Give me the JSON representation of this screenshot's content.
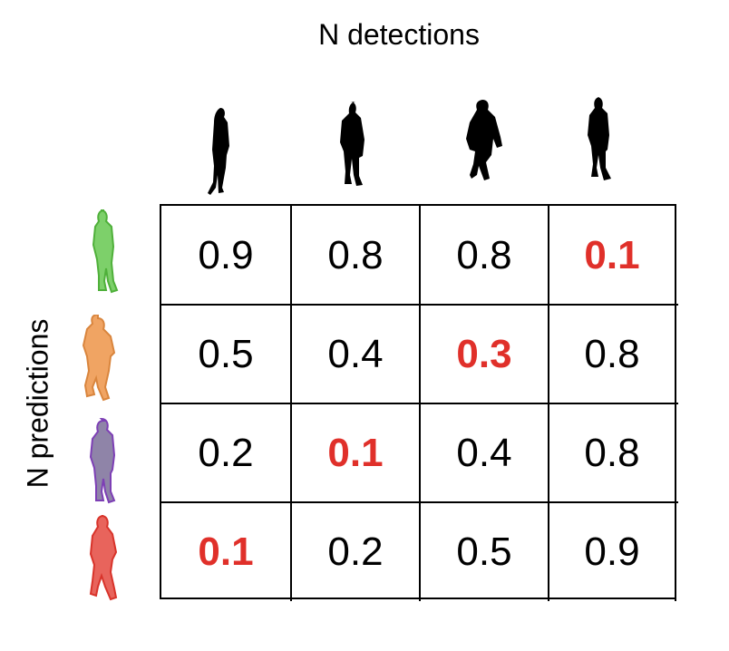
{
  "col_axis_label": "N detections",
  "row_axis_label": "N predictions",
  "detection_figures": [
    "black-silhouette",
    "black-silhouette",
    "black-silhouette",
    "black-silhouette"
  ],
  "prediction_figures": [
    {
      "color": "#7dd06a",
      "stroke": "#4fb03a"
    },
    {
      "color": "#f0a463",
      "stroke": "#d9853d"
    },
    {
      "color": "#8f84a8",
      "stroke": "#7d3fb5"
    },
    {
      "color": "#e8645c",
      "stroke": "#d8332a"
    }
  ],
  "matrix": [
    [
      "0.9",
      "0.8",
      "0.8",
      "0.1"
    ],
    [
      "0.5",
      "0.4",
      "0.3",
      "0.8"
    ],
    [
      "0.2",
      "0.1",
      "0.4",
      "0.8"
    ],
    [
      "0.1",
      "0.2",
      "0.5",
      "0.9"
    ]
  ],
  "highlighted": [
    [
      0,
      3
    ],
    [
      1,
      2
    ],
    [
      2,
      1
    ],
    [
      3,
      0
    ]
  ],
  "highlight_color": "#e0302a"
}
